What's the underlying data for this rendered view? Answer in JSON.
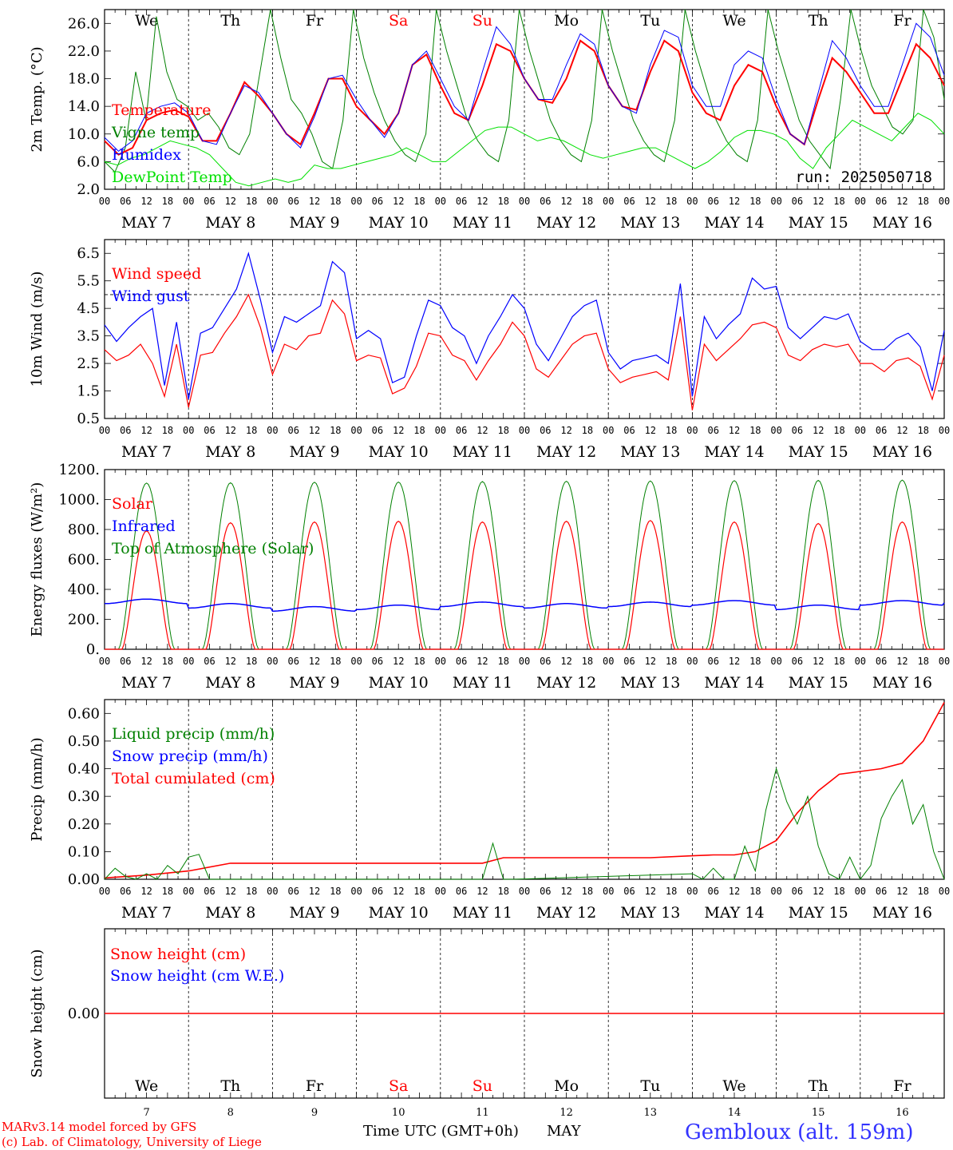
{
  "colors": {
    "red": "#ff0000",
    "blue": "#0000ff",
    "darkgreen": "#008000",
    "lightgreen": "#00e000",
    "axis": "#000000",
    "station": "#3333ff"
  },
  "days": {
    "weekdays": [
      "We",
      "Th",
      "Fr",
      "Sa",
      "Su",
      "Mo",
      "Tu",
      "We",
      "Th",
      "Fr"
    ],
    "weekday_colors": [
      "#000000",
      "#000000",
      "#000000",
      "#ff0000",
      "#ff0000",
      "#000000",
      "#000000",
      "#000000",
      "#000000",
      "#000000"
    ],
    "date_labels": [
      "MAY  7",
      "MAY  8",
      "MAY  9",
      "MAY 10",
      "MAY 11",
      "MAY 12",
      "MAY 13",
      "MAY 14",
      "MAY 15",
      "MAY 16"
    ],
    "hour_ticks": [
      "00",
      "06",
      "12",
      "18"
    ],
    "day_numbers": [
      "7",
      "8",
      "9",
      "10",
      "11",
      "12",
      "13",
      "14",
      "15",
      "16"
    ]
  },
  "footer": {
    "model": "MARv3.14 model forced by GFS",
    "copyright": "(c) Lab. of Climatology, University of Liege",
    "time_label": "Time UTC (GMT+0h)",
    "month": "MAY",
    "station": "Gembloux (alt. 159m)"
  },
  "chart_data": [
    {
      "type": "line",
      "ylabel": "2m Temp. (°C)",
      "ylim": [
        2.0,
        28.0
      ],
      "yticks": [
        "2.0",
        "6.0",
        "10.0",
        "14.0",
        "18.0",
        "22.0",
        "26.0"
      ],
      "ytick_values": [
        2,
        6,
        10,
        14,
        18,
        22,
        26
      ],
      "annotation": "run: 2025050718",
      "legend": [
        {
          "name": "Temperature",
          "color": "#ff0000"
        },
        {
          "name": "Vigne temp",
          "color": "#008000"
        },
        {
          "name": "Humidex",
          "color": "#0000ff"
        },
        {
          "name": "DewPoint Temp",
          "color": "#00e000"
        }
      ],
      "x_hours_step": 6,
      "series": [
        {
          "name": "Vigne temp",
          "color": "#008000",
          "values": [
            6,
            4.5,
            8,
            19,
            12,
            27,
            19,
            15,
            14,
            12,
            13,
            11,
            8,
            7,
            10,
            19,
            28,
            21,
            15,
            13,
            10,
            6,
            5,
            12,
            28,
            21,
            16,
            12,
            9,
            7,
            6,
            10,
            28,
            22,
            17,
            12,
            9,
            7,
            6,
            12,
            28,
            22,
            17,
            12,
            9,
            7,
            6,
            12,
            28,
            22,
            17,
            12,
            9,
            7,
            6,
            12,
            28,
            22,
            17,
            12,
            9,
            7,
            6,
            12,
            28,
            22,
            17,
            12,
            9,
            7,
            5,
            15,
            28,
            22,
            17,
            14,
            11,
            10,
            12,
            28,
            24,
            15
          ]
        },
        {
          "name": "Temperature",
          "color": "#ff0000",
          "values": [
            9,
            7,
            8,
            12,
            13,
            13.5,
            12.5,
            9,
            9,
            13,
            17.5,
            15.5,
            13,
            10,
            8.5,
            13,
            18,
            18,
            14,
            12,
            10,
            13,
            20,
            21.5,
            17,
            13,
            12,
            17,
            23,
            22,
            18,
            15,
            14.5,
            18,
            23.5,
            22,
            17,
            14,
            13.5,
            19,
            23.5,
            22,
            16,
            13,
            12,
            17,
            20,
            19,
            14,
            10,
            8.5,
            15,
            21,
            19,
            16,
            13,
            13,
            18,
            23,
            21,
            17
          ]
        },
        {
          "name": "Humidex",
          "color": "#0000ff",
          "values": [
            9.5,
            7.5,
            9,
            13,
            14,
            14.5,
            13,
            9,
            8.5,
            13,
            17,
            16,
            13,
            10,
            8,
            12.5,
            18,
            18.5,
            15,
            12,
            9.5,
            13,
            20,
            22,
            18,
            14,
            12,
            19,
            25.5,
            23,
            18,
            15,
            15,
            20,
            24.5,
            23,
            17,
            14,
            13,
            20,
            25,
            24,
            17,
            14,
            14,
            20,
            22,
            21,
            15,
            10,
            8.5,
            16,
            23.5,
            21,
            17,
            14,
            14,
            20,
            26,
            24,
            18.5
          ]
        },
        {
          "name": "DewPoint Temp",
          "color": "#00e000",
          "values": [
            6,
            5.5,
            6.5,
            7,
            8,
            9,
            8.5,
            8,
            7,
            5,
            3,
            2.5,
            3,
            3.5,
            3,
            3.5,
            5.5,
            5,
            5,
            5.5,
            6,
            6.5,
            7,
            8,
            7,
            6,
            6,
            7.5,
            9,
            10.5,
            11,
            11,
            10,
            9,
            9.5,
            9,
            8,
            7,
            6.5,
            7,
            7.5,
            8,
            8,
            7,
            6,
            5,
            6,
            7.5,
            9.5,
            10.5,
            10.5,
            10,
            9,
            6.5,
            5,
            8,
            10,
            12,
            11,
            10,
            9,
            11,
            13,
            12,
            10
          ]
        }
      ]
    },
    {
      "type": "line",
      "ylabel": "10m Wind (m/s)",
      "ylim": [
        0.5,
        7.0
      ],
      "yticks": [
        "0.5",
        "1.5",
        "2.5",
        "3.5",
        "4.5",
        "5.5",
        "6.5"
      ],
      "ytick_values": [
        0.5,
        1.5,
        2.5,
        3.5,
        4.5,
        5.5,
        6.5
      ],
      "reference_line": 5.0,
      "legend": [
        {
          "name": "Wind speed",
          "color": "#ff0000"
        },
        {
          "name": "Wind gust",
          "color": "#0000ff"
        }
      ],
      "x_hours_step": 6,
      "series": [
        {
          "name": "Wind speed",
          "color": "#ff0000",
          "values": [
            3.0,
            2.6,
            2.8,
            3.2,
            2.5,
            1.3,
            3.2,
            0.9,
            2.8,
            2.9,
            3.6,
            4.2,
            5.0,
            3.8,
            2.1,
            3.2,
            3.0,
            3.5,
            3.6,
            4.8,
            4.3,
            2.6,
            2.8,
            2.7,
            1.4,
            1.6,
            2.4,
            3.6,
            3.5,
            2.8,
            2.6,
            1.9,
            2.6,
            3.2,
            4.0,
            3.5,
            2.3,
            2.0,
            2.6,
            3.2,
            3.5,
            3.6,
            2.3,
            1.8,
            2.0,
            2.1,
            2.2,
            1.9,
            4.2,
            0.8,
            3.2,
            2.6,
            3.0,
            3.4,
            3.9,
            4.0,
            3.8,
            2.8,
            2.6,
            3.0,
            3.2,
            3.1,
            3.2,
            2.5,
            2.5,
            2.2,
            2.6,
            2.7,
            2.4,
            1.2,
            2.8
          ]
        },
        {
          "name": "Wind gust",
          "color": "#0000ff",
          "values": [
            3.9,
            3.3,
            3.8,
            4.2,
            4.5,
            1.7,
            4.0,
            1.2,
            3.6,
            3.8,
            4.5,
            5.2,
            6.5,
            4.8,
            2.9,
            4.2,
            4.0,
            4.3,
            4.6,
            6.2,
            5.8,
            3.4,
            3.7,
            3.4,
            1.8,
            2.0,
            3.5,
            4.8,
            4.6,
            3.8,
            3.5,
            2.5,
            3.5,
            4.2,
            5.0,
            4.5,
            3.2,
            2.6,
            3.4,
            4.2,
            4.6,
            4.8,
            2.9,
            2.3,
            2.6,
            2.7,
            2.8,
            2.5,
            5.4,
            1.3,
            4.2,
            3.4,
            3.9,
            4.3,
            5.6,
            5.2,
            5.3,
            3.8,
            3.4,
            3.8,
            4.2,
            4.1,
            4.3,
            3.3,
            3.0,
            3.0,
            3.4,
            3.6,
            3.1,
            1.5,
            3.7
          ]
        }
      ]
    },
    {
      "type": "line",
      "ylabel": "Energy fluxes (W/m²)",
      "ylim": [
        0,
        1200
      ],
      "yticks": [
        "0.",
        "200.",
        "400.",
        "600.",
        "800.",
        "1000.",
        "1200."
      ],
      "ytick_values": [
        0,
        200,
        400,
        600,
        800,
        1000,
        1200
      ],
      "legend": [
        {
          "name": "Solar",
          "color": "#ff0000"
        },
        {
          "name": "Infrared",
          "color": "#0000ff"
        },
        {
          "name": "Top of Atmosphere (Solar)",
          "color": "#008000"
        }
      ],
      "daily_peaks": {
        "toa_peak": [
          1110,
          1112,
          1115,
          1117,
          1120,
          1122,
          1124,
          1126,
          1128,
          1130
        ],
        "solar_peak": [
          790,
          845,
          850,
          855,
          850,
          855,
          860,
          850,
          840,
          850
        ],
        "infrared_mean": [
          320,
          290,
          270,
          280,
          300,
          290,
          300,
          310,
          280,
          310
        ]
      }
    },
    {
      "type": "line",
      "ylabel": "Precip (mm/h)",
      "ylim": [
        0.0,
        0.65
      ],
      "yticks": [
        "0.00",
        "0.10",
        "0.20",
        "0.30",
        "0.40",
        "0.50",
        "0.60"
      ],
      "ytick_values": [
        0.0,
        0.1,
        0.2,
        0.3,
        0.4,
        0.5,
        0.6
      ],
      "legend": [
        {
          "name": "Liquid precip (mm/h)",
          "color": "#008000"
        },
        {
          "name": "Snow precip (mm/h)",
          "color": "#0000ff"
        },
        {
          "name": "Total cumulated (cm)",
          "color": "#ff0000"
        }
      ],
      "series": [
        {
          "name": "Total cumulated (cm)",
          "color": "#ff0000",
          "x_hours": [
            0,
            12,
            24,
            36,
            108,
            114,
            156,
            168,
            174,
            180,
            186,
            192,
            198,
            204,
            210,
            216,
            222,
            228,
            234,
            240
          ],
          "values": [
            0.005,
            0.015,
            0.03,
            0.058,
            0.058,
            0.078,
            0.078,
            0.085,
            0.088,
            0.088,
            0.1,
            0.14,
            0.24,
            0.32,
            0.38,
            0.39,
            0.4,
            0.42,
            0.5,
            0.64
          ]
        },
        {
          "name": "Liquid precip (mm/h)",
          "color": "#008000",
          "x_hours": [
            0,
            3,
            6,
            9,
            12,
            15,
            18,
            21,
            24,
            27,
            30,
            33,
            108,
            111,
            114,
            117,
            168,
            171,
            174,
            177,
            180,
            183,
            186,
            189,
            192,
            195,
            198,
            201,
            204,
            207,
            210,
            213,
            216,
            219,
            222,
            225,
            228,
            231,
            234,
            237,
            240
          ],
          "values": [
            0,
            0.04,
            0.01,
            0,
            0.02,
            0,
            0.05,
            0.02,
            0.08,
            0.09,
            0,
            0,
            0,
            0.13,
            0,
            0,
            0.02,
            0,
            0.04,
            0,
            0,
            0.12,
            0.03,
            0.25,
            0.4,
            0.28,
            0.2,
            0.3,
            0.12,
            0.02,
            0,
            0.08,
            0,
            0.05,
            0.22,
            0.3,
            0.36,
            0.2,
            0.27,
            0.1,
            0
          ]
        }
      ]
    },
    {
      "type": "line",
      "ylabel": "Snow height (cm)",
      "ylim": [
        -1,
        1
      ],
      "yticks": [
        "0.00"
      ],
      "ytick_values": [
        0
      ],
      "legend": [
        {
          "name": "Snow height (cm)",
          "color": "#ff0000"
        },
        {
          "name": "Snow height (cm W.E.)",
          "color": "#0000ff"
        }
      ],
      "series": [
        {
          "name": "Snow height (cm)",
          "color": "#ff0000",
          "values": [
            0,
            0
          ]
        }
      ]
    }
  ]
}
